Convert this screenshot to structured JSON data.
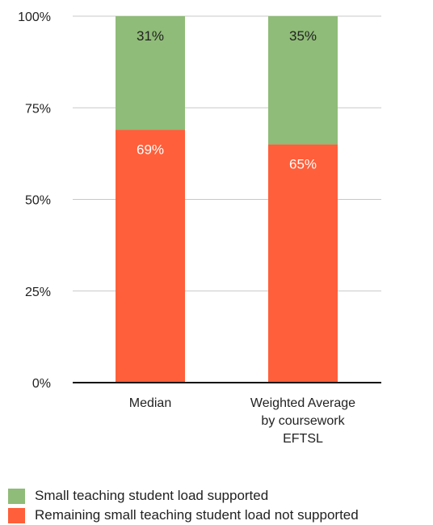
{
  "chart_data": {
    "type": "bar",
    "stacked": true,
    "title": "",
    "xlabel": "",
    "ylabel": "",
    "ylim": [
      0,
      100
    ],
    "yticks": [
      "0%",
      "25%",
      "50%",
      "75%",
      "100%"
    ],
    "grid": true,
    "legend_position": "bottom-left",
    "categories": [
      [
        "Median"
      ],
      [
        "Weighted Average",
        "by coursework",
        "EFTSL"
      ]
    ],
    "series": [
      {
        "name": "Remaining small teaching student load not supported",
        "color": "#ff5f3a",
        "label_color": "#ffffff",
        "values": [
          69,
          65
        ],
        "labels": [
          "69%",
          "65%"
        ]
      },
      {
        "name": "Small teaching student load supported",
        "color": "#8fbc78",
        "label_color": "#222222",
        "values": [
          31,
          35
        ],
        "labels": [
          "31%",
          "35%"
        ]
      }
    ]
  },
  "legend": [
    {
      "name": "Small teaching student load supported",
      "color": "#8fbc78"
    },
    {
      "name": "Remaining small teaching student load not supported",
      "color": "#ff5f3a"
    }
  ]
}
